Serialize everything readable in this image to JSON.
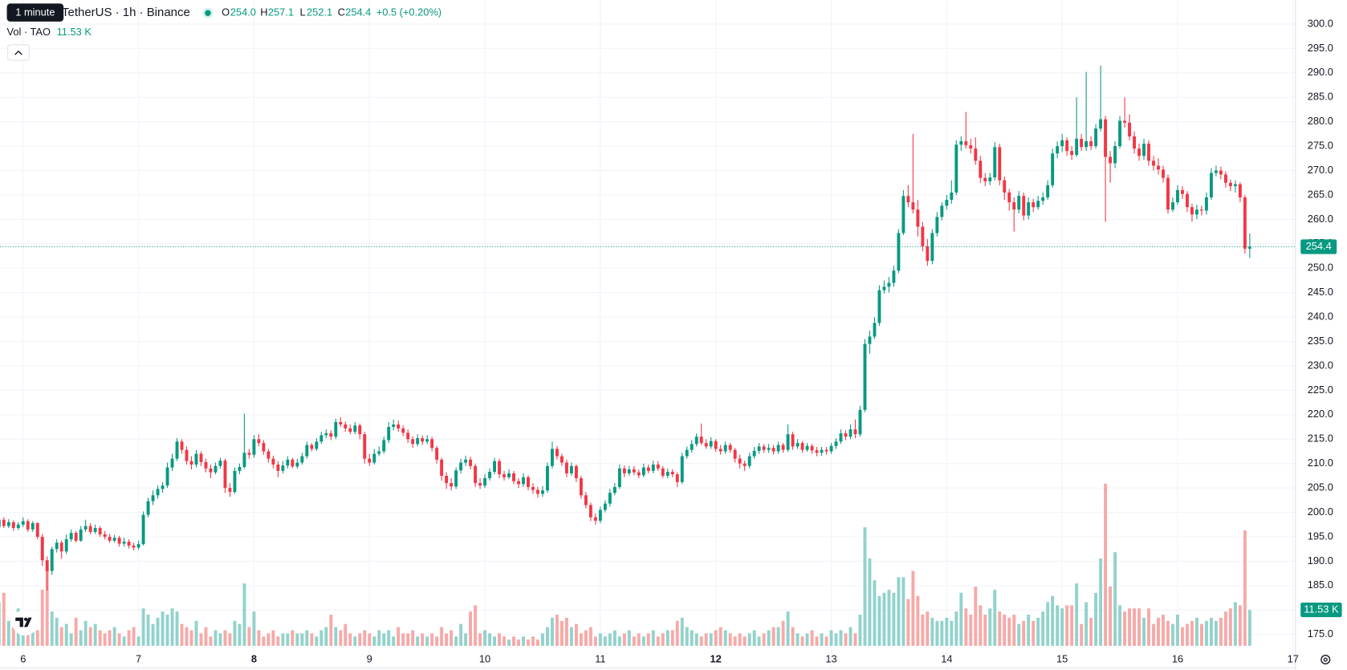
{
  "chart_data": {
    "type": "candlestick",
    "title": "TetherUS · 1h · Binance",
    "tooltip": "1 minute",
    "ohlc_letters": [
      "O",
      "H",
      "L",
      "C"
    ],
    "change": "+0.5 (+0.20%)",
    "colors": {
      "up": "#089981",
      "down": "#f23645",
      "volume_up": "#92d2cc",
      "volume_down": "#f7a9a7"
    },
    "grid": true,
    "xlim": [
      0.2,
      269.5
    ],
    "xticks": [
      {
        "value": 5,
        "label": "6"
      },
      {
        "value": 29,
        "label": "7"
      },
      {
        "value": 53,
        "label": "8"
      },
      {
        "value": 77,
        "label": "9"
      },
      {
        "value": 101,
        "label": "10"
      },
      {
        "value": 125,
        "label": "11"
      },
      {
        "value": 149,
        "label": "12"
      },
      {
        "value": 173,
        "label": "13"
      },
      {
        "value": 197,
        "label": "14"
      },
      {
        "value": 221,
        "label": "15"
      },
      {
        "value": 245,
        "label": "16"
      },
      {
        "value": 269,
        "label": "17"
      }
    ],
    "ylim": [
      168.1,
      304.9
    ],
    "yticks": [
      {
        "value": 175,
        "label": "175.0"
      },
      {
        "value": 180,
        "label": "180.0"
      },
      {
        "value": 185,
        "label": "185.0"
      },
      {
        "value": 190,
        "label": "190.0"
      },
      {
        "value": 195,
        "label": "195.0"
      },
      {
        "value": 200,
        "label": "200.0"
      },
      {
        "value": 205,
        "label": "205.0"
      },
      {
        "value": 210,
        "label": "210.0"
      },
      {
        "value": 215,
        "label": "215.0"
      },
      {
        "value": 220,
        "label": "220.0"
      },
      {
        "value": 225,
        "label": "225.0"
      },
      {
        "value": 230,
        "label": "230.0"
      },
      {
        "value": 235,
        "label": "235.0"
      },
      {
        "value": 240,
        "label": "240.0"
      },
      {
        "value": 245,
        "label": "245.0"
      },
      {
        "value": 250,
        "label": "250.0"
      },
      {
        "value": 255,
        "label": "255.0"
      },
      {
        "value": 260,
        "label": "260.0"
      },
      {
        "value": 265,
        "label": "265.0"
      },
      {
        "value": 270,
        "label": "270.0"
      },
      {
        "value": 275,
        "label": "275.0"
      },
      {
        "value": 280,
        "label": "280.0"
      },
      {
        "value": 285,
        "label": "285.0"
      },
      {
        "value": 290,
        "label": "290.0"
      },
      {
        "value": 295,
        "label": "295.0"
      },
      {
        "value": 300,
        "label": "300.0"
      }
    ],
    "open": [
      197.0,
      198.5,
      197.2,
      198.0,
      196.8,
      197.5,
      198.2,
      196.5,
      197.8,
      195.0,
      190.2,
      188.0,
      192.5,
      193.8,
      192.0,
      194.5,
      195.8,
      194.2,
      196.5,
      197.2,
      196.0,
      196.8,
      195.5,
      195.0,
      194.2,
      194.8,
      193.6,
      194.0,
      193.2,
      192.8,
      193.5,
      199.5,
      202.3,
      203.5,
      204.8,
      205.5,
      209.2,
      211.0,
      214.5,
      212.8,
      210.5,
      209.8,
      212.0,
      210.3,
      209.0,
      208.2,
      209.5,
      210.6,
      205.0,
      204.2,
      208.5,
      209.3,
      212.2,
      211.8,
      215.0,
      214.2,
      212.5,
      211.0,
      209.8,
      208.5,
      209.6,
      210.8,
      209.4,
      210.2,
      211.5,
      213.8,
      213.0,
      214.5,
      215.8,
      216.2,
      215.5,
      218.5,
      218.0,
      217.2,
      216.5,
      217.8,
      216.0,
      211.0,
      210.2,
      212.0,
      212.5,
      214.8,
      217.5,
      218.0,
      217.2,
      216.3,
      215.0,
      214.0,
      215.2,
      214.5,
      215.0,
      213.2,
      210.8,
      207.5,
      206.0,
      205.3,
      208.6,
      210.2,
      210.8,
      209.5,
      206.0,
      205.5,
      207.0,
      208.3,
      210.5,
      207.8,
      207.2,
      208.0,
      206.4,
      205.8,
      207.2,
      205.2,
      204.6,
      203.8,
      204.5,
      209.5,
      213.0,
      211.5,
      210.2,
      208.0,
      209.5,
      207.0,
      203.5,
      201.5,
      199.0,
      198.3,
      200.5,
      201.8,
      204.0,
      205.2,
      209.0,
      208.0,
      208.8,
      208.2,
      207.6,
      209.2,
      208.5,
      209.8,
      209.0,
      207.5,
      208.3,
      207.8,
      206.2,
      211.5,
      212.8,
      214.0,
      215.5,
      214.2,
      213.5,
      214.6,
      213.0,
      212.5,
      213.8,
      212.8,
      211.0,
      210.0,
      209.5,
      211.5,
      212.6,
      213.5,
      212.8,
      213.2,
      212.5,
      213.8,
      212.8,
      216.0,
      213.5,
      214.2,
      212.8,
      213.6,
      212.7,
      212.2,
      212.8,
      212.5,
      213.6,
      214.5,
      216.2,
      215.5,
      217.0,
      216.0,
      221.0,
      234.5,
      236.0,
      238.8,
      245.5,
      246.2,
      247.0,
      249.5,
      257.2,
      264.8,
      263.5,
      262.0,
      258.5,
      254.5,
      251.5,
      257.2,
      260.5,
      262.8,
      264.0,
      265.5,
      275.3,
      276.0,
      275.2,
      274.5,
      272.0,
      268.5,
      267.8,
      268.6,
      274.8,
      268.0,
      265.5,
      263.5,
      262.0,
      264.8,
      260.8,
      263.5,
      262.5,
      263.8,
      264.5,
      267.0,
      273.5,
      275.0,
      276.2,
      274.0,
      273.2,
      276.5,
      274.8,
      276.0,
      275.0,
      278.6,
      280.5,
      272.8,
      271.5,
      275.0,
      280.2,
      279.8,
      277.0,
      274.5,
      273.0,
      275.5,
      272.0,
      271.0,
      270.2,
      268.5,
      262.0,
      263.5,
      266.0,
      265.2,
      262.5,
      261.0,
      262.0,
      261.8,
      264.5,
      269.5,
      270.0,
      269.2,
      267.5,
      266.8,
      267.2,
      264.5,
      254.0
    ],
    "open_value_labels": {
      "260": "254.0"
    },
    "high": [
      199.2,
      199.0,
      198.6,
      198.4,
      198.0,
      199.0,
      198.6,
      198.2,
      198.0,
      195.6,
      191.0,
      193.0,
      194.5,
      194.2,
      195.5,
      196.5,
      196.2,
      197.2,
      198.5,
      197.8,
      197.5,
      197.2,
      196.2,
      195.6,
      195.4,
      195.2,
      194.8,
      194.5,
      193.8,
      194.2,
      200.2,
      203.0,
      204.5,
      205.5,
      206.2,
      210.2,
      212.0,
      215.2,
      215.0,
      213.5,
      211.5,
      212.8,
      212.5,
      211.0,
      209.8,
      210.2,
      211.2,
      211.0,
      206.0,
      209.2,
      210.0,
      220.2,
      213.0,
      215.8,
      216.0,
      214.8,
      213.0,
      211.6,
      210.5,
      210.5,
      211.5,
      211.2,
      211.0,
      212.2,
      214.5,
      214.2,
      215.2,
      216.5,
      217.0,
      216.8,
      219.2,
      219.5,
      218.6,
      218.0,
      218.5,
      218.2,
      216.5,
      212.0,
      213.0,
      213.5,
      215.5,
      218.5,
      219.0,
      218.8,
      217.8,
      217.0,
      215.6,
      216.0,
      215.8,
      215.8,
      215.5,
      213.6,
      211.2,
      208.2,
      207.0,
      209.2,
      211.0,
      211.6,
      211.4,
      210.0,
      207.0,
      207.8,
      209.0,
      211.2,
      211.0,
      208.5,
      208.8,
      208.5,
      207.0,
      208.0,
      207.6,
      206.0,
      205.2,
      205.4,
      210.2,
      214.5,
      213.6,
      212.0,
      210.8,
      210.2,
      209.8,
      207.5,
      204.2,
      202.0,
      199.8,
      201.2,
      202.5,
      204.8,
      206.0,
      209.8,
      209.6,
      209.5,
      209.5,
      208.8,
      210.0,
      209.8,
      210.6,
      210.5,
      209.5,
      209.0,
      208.8,
      208.2,
      212.2,
      213.5,
      214.8,
      216.2,
      218.2,
      215.0,
      215.4,
      215.0,
      213.8,
      214.5,
      214.2,
      213.2,
      211.8,
      210.6,
      212.2,
      213.4,
      214.2,
      214.0,
      214.0,
      213.8,
      214.5,
      214.2,
      218.0,
      216.5,
      215.0,
      214.6,
      214.2,
      214.0,
      213.4,
      213.4,
      213.4,
      214.2,
      215.2,
      217.0,
      216.8,
      218.0,
      219.0,
      221.8,
      235.5,
      237.2,
      240.0,
      246.5,
      247.5,
      248.2,
      250.5,
      258.0,
      266.0,
      267.0,
      277.5,
      264.0,
      259.5,
      256.0,
      258.0,
      261.5,
      263.5,
      265.0,
      268.0,
      276.2,
      277.0,
      282.0,
      276.5,
      276.8,
      273.0,
      269.5,
      269.5,
      275.8,
      275.5,
      268.8,
      266.2,
      264.5,
      265.8,
      265.5,
      264.5,
      264.2,
      264.8,
      265.5,
      268.0,
      274.5,
      276.0,
      277.5,
      276.8,
      275.0,
      285.0,
      277.5,
      290.2,
      277.0,
      279.5,
      291.5,
      281.2,
      274.0,
      276.0,
      281.2,
      285.0,
      281.5,
      278.0,
      275.5,
      276.5,
      276.2,
      273.0,
      272.5,
      271.0,
      269.2,
      264.5,
      267.0,
      266.8,
      265.8,
      263.2,
      263.0,
      262.8,
      265.5,
      270.5,
      271.0,
      270.8,
      269.8,
      268.2,
      268.0,
      267.6,
      265.0,
      257.1
    ],
    "low": [
      196.2,
      196.8,
      196.8,
      196.2,
      196.4,
      197.0,
      196.0,
      196.0,
      194.5,
      189.0,
      184.0,
      187.2,
      191.8,
      190.5,
      191.5,
      194.0,
      193.8,
      194.0,
      196.0,
      195.5,
      195.6,
      195.0,
      194.5,
      193.8,
      193.8,
      193.0,
      193.0,
      192.6,
      192.2,
      192.4,
      193.2,
      199.0,
      201.5,
      202.8,
      204.0,
      205.0,
      208.5,
      210.5,
      212.0,
      209.8,
      208.8,
      209.2,
      209.5,
      208.2,
      207.0,
      207.8,
      209.0,
      204.0,
      203.2,
      203.8,
      207.8,
      209.0,
      211.0,
      211.2,
      213.5,
      211.8,
      210.2,
      209.0,
      207.2,
      208.0,
      209.0,
      209.0,
      209.0,
      209.8,
      211.0,
      212.5,
      212.6,
      214.0,
      215.2,
      214.8,
      215.0,
      217.5,
      216.5,
      216.0,
      216.0,
      215.0,
      210.0,
      209.5,
      209.8,
      211.5,
      212.0,
      214.2,
      216.8,
      216.5,
      215.6,
      214.2,
      213.2,
      213.5,
      213.8,
      214.0,
      212.5,
      210.0,
      206.5,
      204.8,
      204.5,
      204.8,
      208.0,
      209.5,
      208.8,
      205.2,
      204.8,
      205.0,
      206.5,
      207.8,
      207.0,
      206.5,
      206.8,
      205.8,
      205.0,
      205.2,
      204.5,
      203.8,
      203.0,
      203.2,
      204.0,
      209.0,
      210.8,
      209.5,
      207.2,
      207.5,
      206.2,
      202.8,
      200.8,
      198.2,
      197.5,
      197.8,
      200.0,
      201.2,
      203.5,
      204.8,
      207.2,
      207.5,
      207.6,
      207.0,
      207.2,
      208.0,
      208.0,
      208.5,
      207.0,
      207.0,
      207.2,
      205.2,
      205.8,
      211.0,
      212.2,
      213.5,
      213.8,
      213.0,
      213.0,
      212.4,
      211.8,
      212.0,
      212.2,
      210.2,
      209.0,
      208.5,
      209.0,
      211.0,
      212.0,
      212.2,
      212.2,
      211.8,
      212.0,
      212.2,
      212.4,
      212.8,
      213.0,
      212.2,
      212.4,
      212.0,
      211.5,
      211.6,
      211.8,
      212.0,
      213.0,
      214.0,
      214.8,
      215.0,
      215.2,
      215.5,
      220.5,
      232.5,
      235.5,
      238.2,
      244.8,
      245.0,
      246.2,
      249.0,
      256.8,
      262.5,
      261.2,
      256.5,
      253.5,
      250.5,
      250.8,
      256.5,
      259.8,
      262.0,
      263.2,
      265.0,
      274.0,
      274.5,
      273.5,
      271.2,
      267.5,
      266.8,
      267.0,
      268.0,
      267.0,
      264.0,
      261.8,
      257.5,
      261.2,
      259.8,
      260.0,
      261.5,
      262.0,
      263.0,
      264.0,
      266.5,
      272.5,
      273.8,
      273.0,
      272.2,
      272.8,
      274.0,
      274.0,
      274.2,
      274.5,
      278.0,
      259.5,
      267.5,
      270.5,
      274.5,
      278.8,
      276.2,
      273.5,
      272.0,
      272.2,
      271.0,
      270.0,
      269.2,
      267.5,
      261.2,
      261.5,
      263.0,
      264.2,
      261.5,
      259.5,
      260.0,
      260.8,
      261.0,
      264.0,
      268.8,
      268.2,
      266.5,
      265.8,
      265.5,
      263.5,
      253.0,
      252.1
    ],
    "close": [
      198.5,
      197.2,
      198.0,
      196.8,
      197.5,
      198.2,
      196.5,
      197.8,
      195.0,
      190.2,
      188.0,
      192.5,
      193.8,
      192.0,
      194.5,
      195.8,
      194.2,
      196.5,
      197.2,
      196.0,
      196.8,
      195.5,
      195.0,
      194.2,
      194.8,
      193.6,
      194.0,
      193.2,
      192.8,
      193.5,
      199.5,
      202.3,
      203.5,
      204.8,
      205.5,
      209.2,
      211.0,
      214.5,
      212.8,
      210.5,
      209.8,
      212.0,
      210.3,
      209.0,
      208.2,
      209.5,
      210.6,
      205.0,
      204.2,
      208.5,
      209.3,
      212.2,
      211.8,
      215.0,
      214.2,
      212.5,
      211.0,
      209.8,
      208.5,
      209.6,
      210.8,
      209.4,
      210.2,
      211.5,
      213.8,
      213.0,
      214.5,
      215.8,
      216.2,
      215.5,
      218.5,
      218.0,
      217.2,
      216.5,
      217.8,
      216.0,
      211.0,
      210.2,
      212.0,
      212.5,
      214.8,
      217.5,
      218.0,
      217.2,
      216.3,
      215.0,
      214.0,
      215.2,
      214.5,
      215.0,
      213.2,
      210.8,
      207.5,
      206.0,
      205.3,
      208.6,
      210.2,
      210.8,
      209.5,
      206.0,
      205.5,
      207.0,
      208.3,
      210.5,
      207.8,
      207.2,
      208.0,
      206.4,
      205.8,
      207.2,
      205.2,
      204.6,
      203.8,
      204.5,
      209.5,
      213.0,
      211.5,
      210.2,
      208.0,
      209.5,
      207.0,
      203.5,
      201.5,
      199.0,
      198.3,
      200.5,
      201.8,
      204.0,
      205.2,
      209.0,
      208.0,
      208.8,
      208.2,
      207.6,
      209.2,
      208.5,
      209.8,
      209.0,
      207.5,
      208.3,
      207.8,
      206.2,
      211.5,
      212.8,
      214.0,
      215.5,
      214.2,
      213.5,
      214.6,
      213.0,
      212.5,
      213.8,
      212.8,
      211.0,
      210.0,
      209.5,
      211.5,
      212.6,
      213.5,
      212.8,
      213.2,
      212.5,
      213.8,
      212.8,
      216.0,
      213.5,
      214.2,
      212.8,
      213.6,
      212.7,
      212.2,
      212.8,
      212.5,
      213.6,
      214.5,
      216.2,
      215.5,
      217.0,
      216.0,
      221.0,
      234.5,
      236.0,
      238.8,
      245.5,
      246.2,
      247.0,
      249.5,
      257.2,
      264.8,
      263.5,
      262.0,
      258.5,
      254.5,
      251.5,
      257.2,
      260.5,
      262.8,
      264.0,
      265.5,
      275.3,
      276.0,
      275.2,
      274.5,
      272.0,
      268.5,
      267.8,
      268.6,
      274.8,
      268.0,
      265.5,
      263.5,
      262.0,
      264.8,
      260.8,
      263.5,
      262.5,
      263.8,
      264.5,
      267.0,
      273.5,
      275.0,
      276.2,
      274.0,
      273.2,
      276.5,
      274.8,
      276.0,
      275.0,
      278.6,
      280.5,
      272.8,
      271.5,
      275.0,
      280.2,
      279.8,
      277.0,
      274.5,
      273.0,
      275.5,
      272.0,
      271.0,
      270.2,
      268.5,
      262.0,
      263.5,
      266.0,
      265.2,
      262.5,
      261.0,
      262.0,
      261.8,
      264.5,
      269.5,
      270.0,
      269.2,
      267.5,
      266.8,
      267.2,
      264.5,
      254.0,
      254.4
    ],
    "volume": {
      "name": "Vol · TAO",
      "values": [
        14,
        17,
        8,
        6,
        12,
        5,
        4,
        6,
        5,
        18,
        25,
        11,
        9,
        6,
        7,
        4,
        9,
        5,
        8,
        6,
        7,
        5,
        4,
        5,
        6,
        4,
        3,
        5,
        6,
        3,
        12,
        10,
        7,
        9,
        11,
        10,
        12,
        11,
        7,
        6,
        5,
        8,
        4,
        6,
        3,
        5,
        4,
        5,
        4,
        8,
        7,
        20,
        6,
        11,
        5,
        3,
        4,
        5,
        3,
        4,
        4,
        5,
        4,
        4,
        5,
        4,
        3,
        5,
        6,
        10,
        6,
        5,
        7,
        4,
        3,
        4,
        5,
        4,
        3,
        5,
        4,
        5,
        3,
        6,
        4,
        4,
        5,
        3,
        4,
        3,
        4,
        3,
        6,
        4,
        5,
        3,
        7,
        4,
        11,
        13,
        4,
        5,
        4,
        3,
        4,
        3,
        2,
        3,
        2,
        3,
        2,
        3,
        2,
        4,
        6,
        9,
        10,
        8,
        9,
        6,
        7,
        4,
        5,
        6,
        3,
        4,
        3,
        4,
        5,
        3,
        4,
        5,
        3,
        4,
        3,
        4,
        5,
        3,
        4,
        5,
        5,
        8,
        9,
        6,
        5,
        4,
        3,
        4,
        4,
        5,
        6,
        5,
        4,
        3,
        4,
        3,
        4,
        5,
        3,
        4,
        5,
        6,
        6,
        8,
        11,
        6,
        4,
        3,
        4,
        5,
        3,
        4,
        3,
        5,
        4,
        5,
        4,
        6,
        4,
        10,
        38,
        28,
        21,
        16,
        17,
        18,
        17,
        22,
        22,
        15,
        24,
        16,
        10,
        11,
        9,
        8,
        8,
        9,
        8,
        11,
        17,
        12,
        10,
        19,
        13,
        10,
        12,
        18,
        11,
        10,
        9,
        10,
        7,
        8,
        10,
        8,
        9,
        11,
        14,
        16,
        13,
        12,
        13,
        13,
        20,
        7,
        14,
        9,
        17,
        28,
        52,
        19,
        30,
        13,
        11,
        12,
        12,
        12,
        9,
        12,
        7,
        9,
        10,
        8,
        7,
        10,
        6,
        7,
        8,
        9,
        7,
        8,
        9,
        8,
        9,
        11,
        12,
        14,
        13,
        37,
        11.53
      ],
      "value_labels": {
        "260": "11.53 K"
      }
    }
  }
}
